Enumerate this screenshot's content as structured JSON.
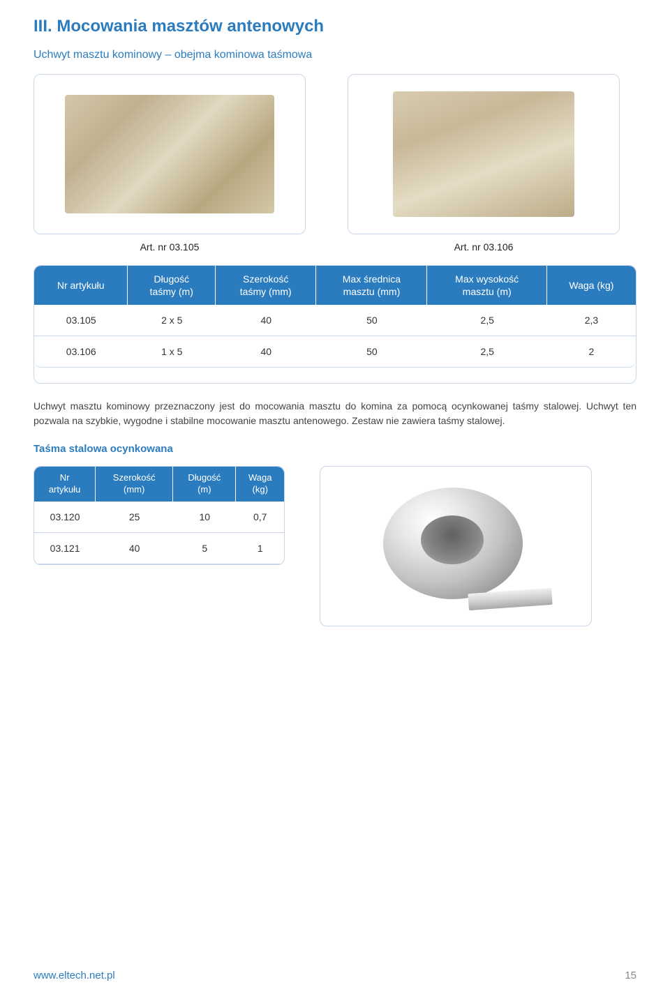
{
  "section_title": "III. Mocowania masztów antenowych",
  "subtitle": "Uchwyt masztu kominowy – obejma kominowa taśmowa",
  "caption_left": "Art. nr 03.105",
  "caption_right": "Art. nr 03.106",
  "table1": {
    "columns": [
      "Nr artykułu",
      "Długość\ntaśmy (m)",
      "Szerokość\ntaśmy (mm)",
      "Max średnica\nmasztu (mm)",
      "Max wysokość\nmasztu (m)",
      "Waga (kg)"
    ],
    "rows": [
      [
        "03.105",
        "2 x 5",
        "40",
        "50",
        "2,5",
        "2,3"
      ],
      [
        "03.106",
        "1 x 5",
        "40",
        "50",
        "2,5",
        "2"
      ]
    ],
    "header_bg": "#2b7cbf",
    "header_color": "#ffffff",
    "border_color": "#c9d6e8"
  },
  "body_text": "Uchwyt masztu kominowy przeznaczony jest do mocowania masztu do komina za pomocą ocynkowanej taśmy stalowej. Uchwyt ten pozwala na szybkie, wygodne i stabilne mocowanie masztu antenowego. Zestaw nie zawiera taśmy stalowej.",
  "subtitle2": "Taśma stalowa ocynkowana",
  "table2": {
    "columns": [
      "Nr\nartykułu",
      "Szerokość\n(mm)",
      "Długość\n(m)",
      "Waga\n(kg)"
    ],
    "rows": [
      [
        "03.120",
        "25",
        "10",
        "0,7"
      ],
      [
        "03.121",
        "40",
        "5",
        "1"
      ]
    ],
    "header_bg": "#2b7cbf"
  },
  "footer": {
    "url": "www.eltech.net.pl",
    "page": "15"
  },
  "colors": {
    "accent": "#2b7cbf",
    "border": "#c9d6e8",
    "text": "#444444",
    "white": "#ffffff"
  }
}
